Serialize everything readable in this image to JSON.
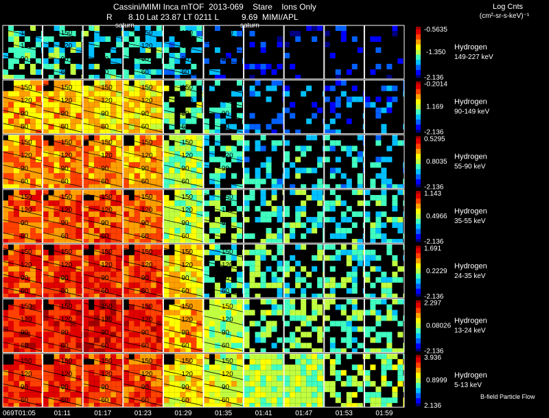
{
  "header": {
    "line1": "Cassini/MIMI Inca mTOF  2013-069    Stare    Ions Only",
    "line2": "R       8.10 Lat 23.87 LT 0211 L          9.69  MIMI/APL",
    "units_title": "Log Cnts",
    "units_sub": "(cm²-sr-s-keV)⁻¹",
    "saturn_label": "saturn"
  },
  "footer": {
    "time_prefix": "069T",
    "flow_label": "B-field Particle Flow"
  },
  "colors": {
    "scale": [
      "#000080",
      "#0000ff",
      "#0060ff",
      "#00c0ff",
      "#40ffc0",
      "#c0ff40",
      "#ffff00",
      "#ffa000",
      "#ff4000",
      "#e00000",
      "#a00000"
    ]
  },
  "chart_data": {
    "type": "heatmap",
    "title": "Cassini/MIMI Inca mTOF 2013-069 Stare Ions Only",
    "times": [
      "01:05",
      "01:11",
      "01:17",
      "01:23",
      "01:29",
      "01:35",
      "01:41",
      "01:47",
      "01:53",
      "01:59"
    ],
    "contour_labels": [
      "150",
      "120",
      "90",
      "60"
    ],
    "rows": [
      {
        "species": "Hydrogen",
        "energy": "149-227 keV",
        "max": "-0.5635",
        "mid": "-1.350",
        "min": "-2.136",
        "level": [
          0.4,
          0.4,
          0.38,
          0.36,
          0.3,
          0.2,
          0.12,
          0.12,
          0.12,
          0.1
        ]
      },
      {
        "species": "Hydrogen",
        "energy": "90-149 keV",
        "max": "-0.2014",
        "mid": "1.169",
        "min": "-2.136",
        "level": [
          0.66,
          0.66,
          0.65,
          0.63,
          0.45,
          0.35,
          0.22,
          0.22,
          0.2,
          0.2
        ]
      },
      {
        "species": "Hydrogen",
        "energy": "55-90 keV",
        "max": "0.5295",
        "mid": "0.8035",
        "min": "-2.136",
        "level": [
          0.72,
          0.72,
          0.72,
          0.7,
          0.5,
          0.42,
          0.35,
          0.35,
          0.32,
          0.3
        ]
      },
      {
        "species": "Hydrogen",
        "energy": "35-55 keV",
        "max": "1.143",
        "mid": "0.4966",
        "min": "-2.136",
        "level": [
          0.78,
          0.78,
          0.78,
          0.76,
          0.52,
          0.45,
          0.4,
          0.4,
          0.38,
          0.36
        ]
      },
      {
        "species": "Hydrogen",
        "energy": "24-35 keV",
        "max": "1.691",
        "mid": "0.2229",
        "min": "-2.136",
        "level": [
          0.82,
          0.82,
          0.84,
          0.82,
          0.62,
          0.45,
          0.42,
          0.42,
          0.4,
          0.4
        ]
      },
      {
        "species": "Hydrogen",
        "energy": "13-24 keV",
        "max": "2.297",
        "mid": "0.08026",
        "min": "-2.136",
        "level": [
          0.88,
          0.88,
          0.92,
          0.86,
          0.68,
          0.5,
          0.45,
          0.45,
          0.44,
          0.44
        ]
      },
      {
        "species": "Hydrogen",
        "energy": "5-13 keV",
        "max": "3.936",
        "mid": "0.8999",
        "min": "2.136",
        "level": [
          0.82,
          0.82,
          0.84,
          0.82,
          0.62,
          0.55,
          0.5,
          0.5,
          0.48,
          0.48
        ]
      }
    ]
  }
}
